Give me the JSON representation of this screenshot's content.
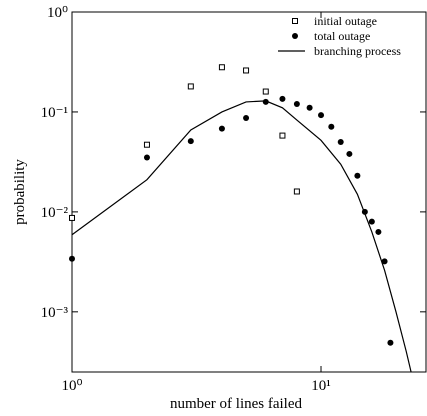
{
  "chart_data": {
    "type": "scatter",
    "xlabel": "number of lines failed",
    "ylabel": "probability",
    "xscale": "log",
    "yscale": "log",
    "xlim": [
      1,
      26.4
    ],
    "ylim": [
      0.00025,
      1
    ],
    "xticks": [
      {
        "value": 1,
        "label": "10⁰"
      },
      {
        "value": 10,
        "label": "10¹"
      }
    ],
    "yticks": [
      {
        "value": 0.001,
        "label": "10⁻³"
      },
      {
        "value": 0.01,
        "label": "10⁻²"
      },
      {
        "value": 0.1,
        "label": "10⁻¹"
      },
      {
        "value": 1,
        "label": "10⁰"
      }
    ],
    "legend": "upper right",
    "series": [
      {
        "name": "initial outage",
        "marker": "square",
        "color": "#000000",
        "x": [
          1,
          2,
          3,
          4,
          5,
          6,
          7,
          8
        ],
        "values": [
          0.0087,
          0.047,
          0.18,
          0.28,
          0.26,
          0.16,
          0.058,
          0.016
        ]
      },
      {
        "name": "total outage",
        "marker": "dot",
        "color": "#000000",
        "x": [
          1,
          2,
          3,
          4,
          5,
          6,
          7,
          8,
          9,
          10,
          11,
          12,
          13,
          14,
          15,
          16,
          17,
          18,
          19
        ],
        "values": [
          0.0034,
          0.035,
          0.051,
          0.068,
          0.087,
          0.126,
          0.135,
          0.12,
          0.11,
          0.093,
          0.071,
          0.05,
          0.038,
          0.023,
          0.01,
          0.008,
          0.0063,
          0.0032,
          0.00049
        ]
      },
      {
        "name": "branching process",
        "marker": "line",
        "color": "#000000",
        "x": [
          1,
          2,
          3,
          4,
          5,
          6,
          7,
          8,
          10,
          12,
          14,
          16,
          18,
          20,
          22,
          23
        ],
        "values": [
          0.0059,
          0.021,
          0.066,
          0.1,
          0.126,
          0.129,
          0.11,
          0.083,
          0.052,
          0.03,
          0.015,
          0.0063,
          0.0026,
          0.001,
          0.0004,
          0.00025
        ]
      }
    ]
  }
}
